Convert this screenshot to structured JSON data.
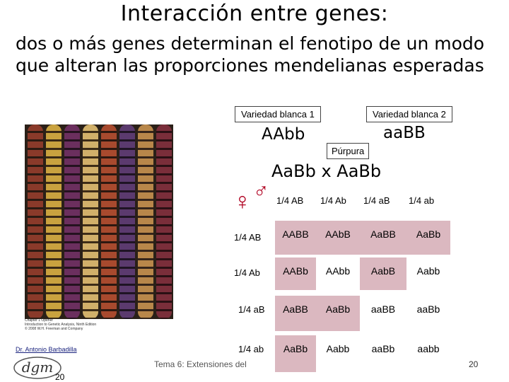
{
  "slide": {
    "title": "Interacción entre genes:",
    "subtitle": "dos o más genes determinan el fenotipo de un modo que alteran las proporciones mendelianas esperadas",
    "variety1_label": "Variedad blanca 1",
    "variety2_label": "Variedad blanca 2",
    "genotype1": "AAbb",
    "genotype2": "aaBB",
    "purple_label": "Púrpura",
    "cross": "AaBb x AaBb",
    "female_symbol": "♀",
    "male_symbol": "♂",
    "author": "Dr. Antonio Barbadilla",
    "logo_text": "dgm",
    "small_number": "20",
    "footer": "Tema 6: Extensiones del",
    "page_number": "20",
    "photo_caption": [
      "Chapter 1 Opener",
      "Introduction to Genetic Analysis, Ninth Edition",
      "© 2008 W.H. Freeman and Company"
    ]
  },
  "punnett": {
    "male_gametes": [
      "1/4 AB",
      "1/4 Ab",
      "1/4 aB",
      "1/4 ab"
    ],
    "female_gametes": [
      "1/4 AB",
      "1/4 Ab",
      "1/4 aB",
      "1/4 ab"
    ],
    "cells": [
      [
        "AABB",
        "AAbB",
        "AaBB",
        "AaBb"
      ],
      [
        "AABb",
        "AAbb",
        "AabB",
        "Aabb"
      ],
      [
        "AaBB",
        "AaBb",
        "aaBB",
        "aaBb"
      ],
      [
        "AaBb",
        "Aabb",
        "aaBb",
        "aabb"
      ]
    ],
    "purple": [
      [
        true,
        true,
        true,
        true
      ],
      [
        true,
        false,
        true,
        false
      ],
      [
        true,
        true,
        false,
        false
      ],
      [
        true,
        false,
        false,
        false
      ]
    ],
    "colors": {
      "purple": "#dbb8c0",
      "white": "#ffffff"
    }
  }
}
